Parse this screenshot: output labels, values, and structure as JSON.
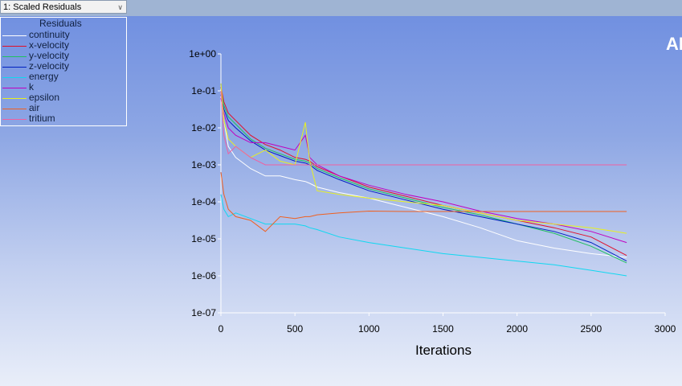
{
  "toolbar": {
    "plot_selector": "1: Scaled Residuals"
  },
  "brand_fragment": "AN",
  "chart_data": {
    "type": "line",
    "title": "Residuals",
    "xlabel": "Iterations",
    "ylabel": "",
    "xlim": [
      0,
      3000
    ],
    "ylim": [
      1e-07,
      1
    ],
    "yscale": "log",
    "xticks": [
      "0",
      "500",
      "1000",
      "1500",
      "2000",
      "2500",
      "3000"
    ],
    "yticks": [
      "1e+00",
      "1e-01",
      "1e-02",
      "1e-03",
      "1e-04",
      "1e-05",
      "1e-06",
      "1e-07"
    ],
    "legend_position": "top-left",
    "note": "values given as log10(residual)",
    "x": [
      0,
      20,
      50,
      100,
      200,
      300,
      400,
      500,
      570,
      600,
      650,
      800,
      1000,
      1250,
      1500,
      1750,
      2000,
      2250,
      2500,
      2740
    ],
    "series": [
      {
        "name": "continuity",
        "color": "#ffffff",
        "values_log10": [
          -1.0,
          -1.8,
          -2.5,
          -2.8,
          -3.1,
          -3.3,
          -3.3,
          -3.4,
          -3.45,
          -3.5,
          -3.6,
          -3.75,
          -3.9,
          -4.15,
          -4.4,
          -4.7,
          -5.05,
          -5.25,
          -5.4,
          -5.5
        ]
      },
      {
        "name": "x-velocity",
        "color": "#e0102a",
        "values_log10": [
          -0.9,
          -1.3,
          -1.6,
          -1.8,
          -2.2,
          -2.45,
          -2.6,
          -2.8,
          -2.85,
          -2.9,
          -3.05,
          -3.3,
          -3.6,
          -3.85,
          -4.1,
          -4.3,
          -4.5,
          -4.7,
          -4.95,
          -5.45
        ]
      },
      {
        "name": "y-velocity",
        "color": "#20c060",
        "values_log10": [
          -1.0,
          -1.4,
          -1.7,
          -1.9,
          -2.3,
          -2.55,
          -2.7,
          -2.85,
          -2.9,
          -2.95,
          -3.1,
          -3.35,
          -3.65,
          -3.9,
          -4.15,
          -4.35,
          -4.6,
          -4.85,
          -5.2,
          -5.65
        ]
      },
      {
        "name": "z-velocity",
        "color": "#0020c0",
        "values_log10": [
          -1.1,
          -1.5,
          -1.8,
          -2.0,
          -2.35,
          -2.6,
          -2.75,
          -2.9,
          -2.95,
          -3.0,
          -3.15,
          -3.4,
          -3.7,
          -3.95,
          -4.2,
          -4.4,
          -4.6,
          -4.8,
          -5.1,
          -5.6
        ]
      },
      {
        "name": "energy",
        "color": "#10d8f0",
        "values_log10": [
          -3.8,
          -4.2,
          -4.4,
          -4.3,
          -4.45,
          -4.6,
          -4.6,
          -4.6,
          -4.65,
          -4.7,
          -4.75,
          -4.95,
          -5.1,
          -5.25,
          -5.4,
          -5.5,
          -5.6,
          -5.7,
          -5.85,
          -6.0
        ]
      },
      {
        "name": "k",
        "color": "#c000c0",
        "values_log10": [
          -1.2,
          -1.6,
          -2.0,
          -2.2,
          -2.4,
          -2.4,
          -2.5,
          -2.6,
          -2.2,
          -2.8,
          -3.0,
          -3.3,
          -3.55,
          -3.8,
          -4.0,
          -4.25,
          -4.45,
          -4.6,
          -4.8,
          -5.1
        ]
      },
      {
        "name": "epsilon",
        "color": "#e8f020",
        "values_log10": [
          -0.8,
          -1.8,
          -2.3,
          -2.5,
          -2.8,
          -2.6,
          -2.9,
          -3.0,
          -1.85,
          -2.9,
          -3.7,
          -3.8,
          -3.9,
          -4.0,
          -4.1,
          -4.3,
          -4.5,
          -4.6,
          -4.7,
          -4.85
        ]
      },
      {
        "name": "air",
        "color": "#f06020",
        "values_log10": [
          -3.2,
          -3.8,
          -4.2,
          -4.4,
          -4.5,
          -4.8,
          -4.4,
          -4.45,
          -4.4,
          -4.4,
          -4.35,
          -4.3,
          -4.25,
          -4.26,
          -4.26,
          -4.26,
          -4.26,
          -4.26,
          -4.26,
          -4.26
        ]
      },
      {
        "name": "tritium",
        "color": "#f060a0",
        "values_log10": [
          -1.0,
          -2.2,
          -2.7,
          -2.5,
          -2.8,
          -3.0,
          -3.0,
          -3.0,
          -3.0,
          -3.0,
          -3.0,
          -3.0,
          -3.0,
          -3.0,
          -3.0,
          -3.0,
          -3.0,
          -3.0,
          -3.0,
          -3.0
        ]
      }
    ]
  }
}
